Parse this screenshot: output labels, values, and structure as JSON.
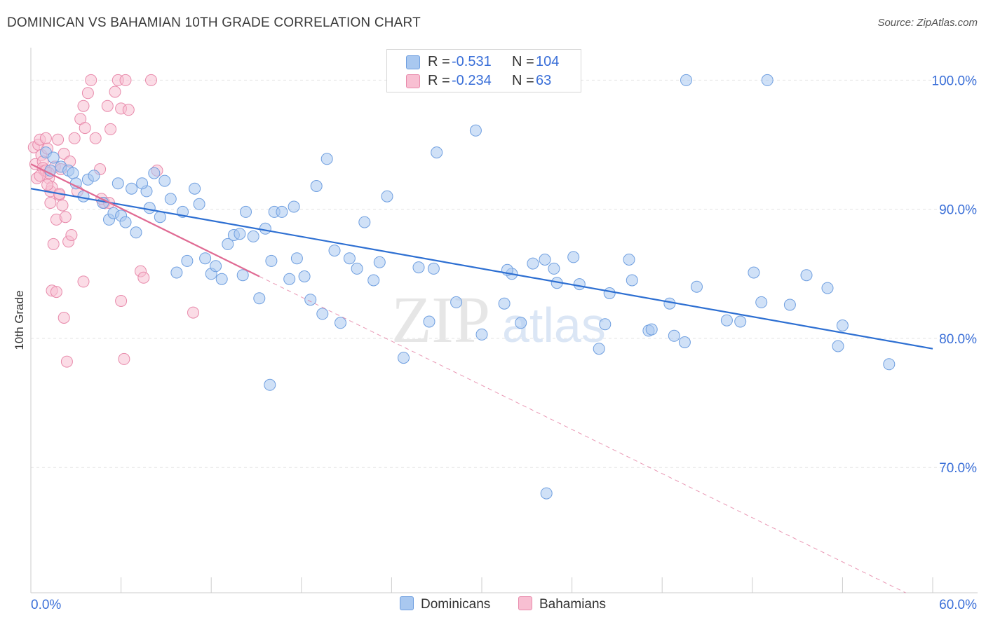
{
  "header": {
    "title": "DOMINICAN VS BAHAMIAN 10TH GRADE CORRELATION CHART",
    "source": "Source: ZipAtlas.com"
  },
  "watermark": {
    "zip": "ZIP",
    "atlas": "atlas"
  },
  "stats_legend": [
    {
      "r_label": "R =",
      "r_value": "-0.531",
      "n_label": "N =",
      "n_value": "104",
      "color": "#a9c8f0",
      "border": "#6f9fe0"
    },
    {
      "r_label": "R =",
      "r_value": "-0.234",
      "n_label": "N =",
      "n_value": "63",
      "color": "#f8bfd2",
      "border": "#e88aab"
    }
  ],
  "chart_data": {
    "type": "scatter",
    "title": "DOMINICAN VS BAHAMIAN 10TH GRADE CORRELATION CHART",
    "xlabel": "",
    "ylabel": "10th Grade",
    "xlim": [
      0,
      60
    ],
    "ylim": [
      60.3,
      102.3
    ],
    "x_tick_labels": [
      "0.0%",
      "60.0%"
    ],
    "y_ticks": [
      {
        "value": 70,
        "label": "70.0%"
      },
      {
        "value": 80,
        "label": "80.0%"
      },
      {
        "value": 90,
        "label": "90.0%"
      },
      {
        "value": 100,
        "label": "100.0%"
      }
    ],
    "grid": true,
    "legend_position": "bottom",
    "series": [
      {
        "name": "Dominicans",
        "color": "#a9c8f0",
        "stroke": "#6f9fe0",
        "trend": {
          "x": [
            0,
            60
          ],
          "y": [
            91.6,
            79.2
          ],
          "color": "#2d6fd2"
        },
        "points": [
          [
            1.0,
            94.4
          ],
          [
            1.3,
            93.0
          ],
          [
            1.5,
            94.0
          ],
          [
            2.0,
            93.3
          ],
          [
            2.5,
            93.0
          ],
          [
            2.8,
            92.8
          ],
          [
            3.0,
            92.0
          ],
          [
            3.8,
            92.3
          ],
          [
            4.2,
            92.6
          ],
          [
            3.5,
            91.0
          ],
          [
            4.8,
            90.5
          ],
          [
            5.2,
            89.2
          ],
          [
            5.5,
            89.7
          ],
          [
            6.0,
            89.5
          ],
          [
            6.3,
            89.0
          ],
          [
            5.8,
            92.0
          ],
          [
            6.7,
            91.6
          ],
          [
            7.0,
            88.2
          ],
          [
            7.7,
            91.4
          ],
          [
            7.4,
            92.0
          ],
          [
            8.2,
            92.8
          ],
          [
            7.9,
            90.1
          ],
          [
            8.6,
            89.4
          ],
          [
            8.9,
            92.2
          ],
          [
            9.3,
            90.8
          ],
          [
            10.1,
            89.8
          ],
          [
            10.9,
            91.6
          ],
          [
            11.2,
            90.4
          ],
          [
            10.4,
            86.0
          ],
          [
            9.7,
            85.1
          ],
          [
            11.6,
            86.2
          ],
          [
            12.0,
            85.0
          ],
          [
            12.3,
            85.6
          ],
          [
            12.7,
            84.6
          ],
          [
            13.1,
            87.3
          ],
          [
            13.5,
            88.0
          ],
          [
            13.9,
            88.1
          ],
          [
            14.3,
            89.8
          ],
          [
            14.8,
            87.9
          ],
          [
            14.1,
            84.9
          ],
          [
            15.2,
            83.1
          ],
          [
            15.6,
            88.5
          ],
          [
            16.0,
            86.0
          ],
          [
            16.2,
            89.8
          ],
          [
            16.7,
            89.8
          ],
          [
            17.2,
            84.6
          ],
          [
            17.5,
            90.2
          ],
          [
            17.7,
            86.2
          ],
          [
            18.2,
            84.8
          ],
          [
            18.6,
            83.0
          ],
          [
            19.0,
            91.8
          ],
          [
            19.4,
            81.9
          ],
          [
            19.7,
            93.9
          ],
          [
            20.2,
            86.8
          ],
          [
            20.6,
            81.2
          ],
          [
            21.2,
            86.2
          ],
          [
            21.7,
            85.4
          ],
          [
            22.2,
            89.0
          ],
          [
            22.8,
            84.5
          ],
          [
            23.2,
            85.9
          ],
          [
            23.7,
            91.0
          ],
          [
            24.8,
            78.5
          ],
          [
            25.8,
            85.5
          ],
          [
            26.5,
            81.3
          ],
          [
            26.8,
            85.4
          ],
          [
            27.0,
            94.4
          ],
          [
            28.3,
            82.8
          ],
          [
            29.6,
            96.1
          ],
          [
            30.0,
            80.3
          ],
          [
            31.5,
            82.7
          ],
          [
            32.0,
            85.0
          ],
          [
            31.7,
            85.3
          ],
          [
            32.6,
            81.2
          ],
          [
            33.4,
            85.8
          ],
          [
            34.2,
            86.1
          ],
          [
            34.8,
            85.4
          ],
          [
            35.0,
            84.3
          ],
          [
            36.1,
            86.3
          ],
          [
            36.5,
            84.2
          ],
          [
            37.8,
            79.2
          ],
          [
            38.2,
            81.1
          ],
          [
            38.5,
            83.5
          ],
          [
            39.8,
            86.1
          ],
          [
            40.0,
            84.5
          ],
          [
            41.1,
            80.6
          ],
          [
            41.3,
            80.7
          ],
          [
            42.5,
            82.7
          ],
          [
            42.8,
            80.2
          ],
          [
            43.5,
            79.7
          ],
          [
            44.3,
            84.0
          ],
          [
            46.3,
            81.4
          ],
          [
            47.2,
            81.3
          ],
          [
            48.1,
            85.1
          ],
          [
            48.6,
            82.8
          ],
          [
            50.5,
            82.6
          ],
          [
            51.6,
            84.9
          ],
          [
            53.0,
            83.9
          ],
          [
            53.7,
            79.4
          ],
          [
            54.0,
            81.0
          ],
          [
            57.1,
            78.0
          ],
          [
            34.3,
            68.0
          ],
          [
            15.9,
            76.4
          ],
          [
            49.0,
            100.0
          ],
          [
            43.6,
            100.0
          ]
        ]
      },
      {
        "name": "Bahamians",
        "color": "#f8bfd2",
        "stroke": "#e88aab",
        "trend": {
          "x": [
            0,
            15.2
          ],
          "y": [
            93.5,
            84.8
          ],
          "color": "#e06a93"
        },
        "trend_extension": {
          "x": [
            15.2,
            58.2
          ],
          "y": [
            84.8,
            60.3
          ]
        },
        "points": [
          [
            0.2,
            94.8
          ],
          [
            0.3,
            93.5
          ],
          [
            0.4,
            92.4
          ],
          [
            0.5,
            95.0
          ],
          [
            0.6,
            95.4
          ],
          [
            0.7,
            94.2
          ],
          [
            0.8,
            93.7
          ],
          [
            0.9,
            93.0
          ],
          [
            1.0,
            95.5
          ],
          [
            1.1,
            94.7
          ],
          [
            1.2,
            92.4
          ],
          [
            1.3,
            91.4
          ],
          [
            1.4,
            91.7
          ],
          [
            1.6,
            93.3
          ],
          [
            1.8,
            95.4
          ],
          [
            2.0,
            93.1
          ],
          [
            2.2,
            94.3
          ],
          [
            1.3,
            90.5
          ],
          [
            1.5,
            87.3
          ],
          [
            1.7,
            89.2
          ],
          [
            1.9,
            91.1
          ],
          [
            2.1,
            90.3
          ],
          [
            2.3,
            89.4
          ],
          [
            2.5,
            87.5
          ],
          [
            2.7,
            88.0
          ],
          [
            0.8,
            93.2
          ],
          [
            1.0,
            93.0
          ],
          [
            1.2,
            92.8
          ],
          [
            2.6,
            93.7
          ],
          [
            2.9,
            95.5
          ],
          [
            3.1,
            91.4
          ],
          [
            3.3,
            97.0
          ],
          [
            3.5,
            98.0
          ],
          [
            3.8,
            99.0
          ],
          [
            4.0,
            100.0
          ],
          [
            3.6,
            96.3
          ],
          [
            4.3,
            95.5
          ],
          [
            4.6,
            93.1
          ],
          [
            4.9,
            90.5
          ],
          [
            5.1,
            98.0
          ],
          [
            5.3,
            96.2
          ],
          [
            5.6,
            99.1
          ],
          [
            5.8,
            100.0
          ],
          [
            6.0,
            97.8
          ],
          [
            6.3,
            100.0
          ],
          [
            6.5,
            97.7
          ],
          [
            7.3,
            85.2
          ],
          [
            7.5,
            84.7
          ],
          [
            8.0,
            100.0
          ],
          [
            8.4,
            93.0
          ],
          [
            1.4,
            83.7
          ],
          [
            1.7,
            83.6
          ],
          [
            2.2,
            81.6
          ],
          [
            2.4,
            78.2
          ],
          [
            3.5,
            84.4
          ],
          [
            6.0,
            82.9
          ],
          [
            6.2,
            78.4
          ],
          [
            10.8,
            82.0
          ],
          [
            4.7,
            90.8
          ],
          [
            5.2,
            90.5
          ],
          [
            1.1,
            91.9
          ],
          [
            0.6,
            92.6
          ],
          [
            1.9,
            91.2
          ]
        ]
      }
    ]
  },
  "bottom_legend": [
    {
      "name": "Dominicans",
      "color": "#a9c8f0",
      "border": "#6f9fe0"
    },
    {
      "name": "Bahamians",
      "color": "#f8bfd2",
      "border": "#e88aab"
    }
  ]
}
